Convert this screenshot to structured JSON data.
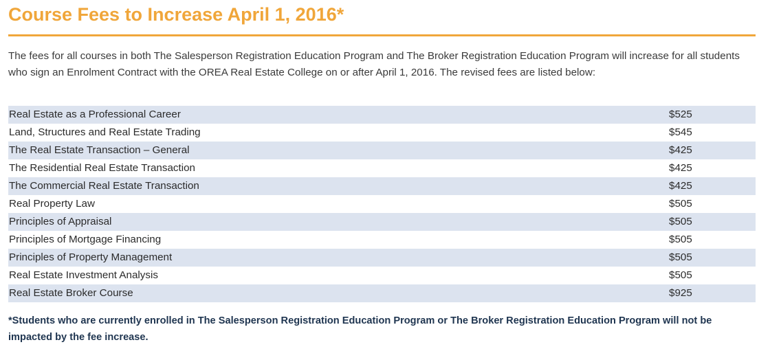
{
  "header": {
    "title": "Course Fees to Increase April 1, 2016*"
  },
  "intro": {
    "text": "The fees for all courses in both The Salesperson Registration Education Program and The Broker Registration Education Program will increase for all students who sign an Enrolment Contract with the OREA Real Estate College on or after April 1, 2016. The revised fees are listed below:"
  },
  "fees": [
    {
      "course": "Real Estate as a Professional Career",
      "fee": "$525"
    },
    {
      "course": "Land, Structures and Real Estate Trading",
      "fee": "$545"
    },
    {
      "course": "The Real Estate Transaction – General",
      "fee": "$425"
    },
    {
      "course": "The Residential Real Estate Transaction",
      "fee": "$425"
    },
    {
      "course": "The Commercial Real Estate Transaction",
      "fee": "$425"
    },
    {
      "course": "Real Property Law",
      "fee": "$505"
    },
    {
      "course": "Principles of Appraisal",
      "fee": "$505"
    },
    {
      "course": "Principles of Mortgage Financing",
      "fee": "$505"
    },
    {
      "course": "Principles of Property Management",
      "fee": "$505"
    },
    {
      "course": "Real Estate Investment Analysis",
      "fee": "$505"
    },
    {
      "course": "Real Estate Broker Course",
      "fee": "$925"
    }
  ],
  "footnote": {
    "text": "*Students who are currently enrolled in The Salesperson Registration Education Program or The Broker Registration Education Program will not be impacted by the fee increase."
  },
  "colors": {
    "title": "#f0a63a",
    "row_stripe": "#dce3ef",
    "footnote": "#1f3550"
  }
}
